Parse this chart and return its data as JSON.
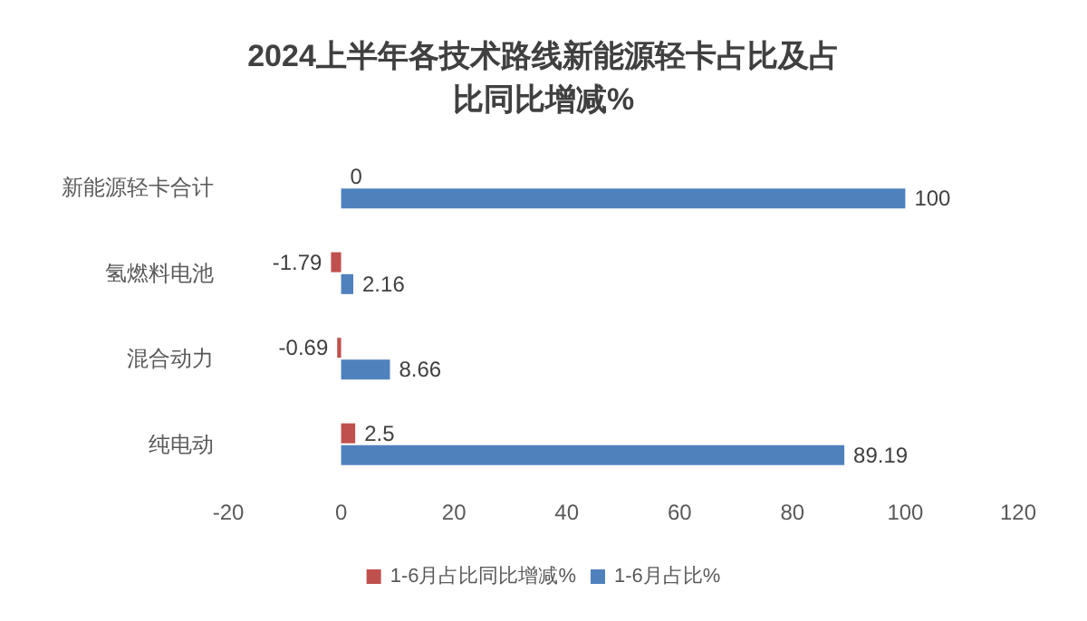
{
  "chart_data": {
    "type": "bar",
    "orientation": "horizontal",
    "title": "2024上半年各技术路线新能源轻卡占比及占比同比增减%",
    "categories": [
      "新能源轻卡合计",
      "氢燃料电池",
      "混合动力",
      "纯电动"
    ],
    "series": [
      {
        "name": "1-6月占比同比增减%",
        "color": "#c0504d",
        "values": [
          0,
          -1.79,
          -0.69,
          2.5
        ]
      },
      {
        "name": "1-6月占比%",
        "color": "#4f81bd",
        "values": [
          100,
          2.16,
          8.66,
          89.19
        ]
      }
    ],
    "xlim": [
      -20,
      120
    ],
    "xticks": [
      -20,
      0,
      20,
      40,
      60,
      80,
      100,
      120
    ],
    "grid": false,
    "legend": "bottom",
    "data_labels": true
  }
}
